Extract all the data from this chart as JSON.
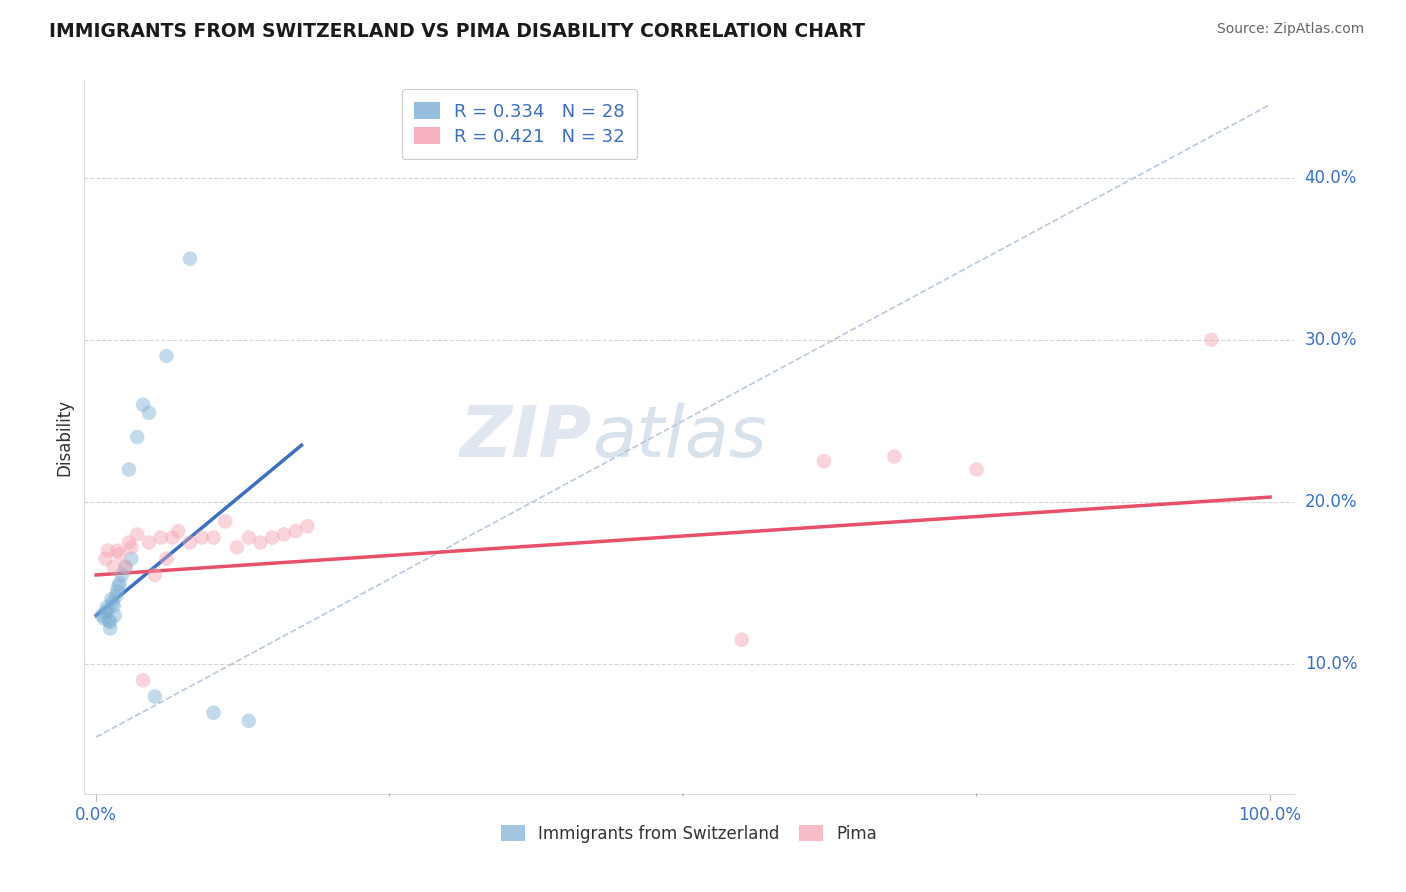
{
  "title": "IMMIGRANTS FROM SWITZERLAND VS PIMA DISABILITY CORRELATION CHART",
  "source": "Source: ZipAtlas.com",
  "ylabel": "Disability",
  "ytick_labels": [
    "10.0%",
    "20.0%",
    "30.0%",
    "40.0%"
  ],
  "ytick_values": [
    0.1,
    0.2,
    0.3,
    0.4
  ],
  "xtick_labels": [
    "0.0%",
    "100.0%"
  ],
  "xtick_values": [
    0.0,
    1.0
  ],
  "xlim": [
    -0.01,
    1.02
  ],
  "ylim": [
    0.02,
    0.46
  ],
  "legend_entries": [
    {
      "label": "R = 0.334   N = 28",
      "color": "#7bafd4"
    },
    {
      "label": "R = 0.421   N = 32",
      "color": "#f4a0b0"
    }
  ],
  "switzerland_scatter_x": [
    0.005,
    0.007,
    0.008,
    0.009,
    0.01,
    0.011,
    0.012,
    0.012,
    0.013,
    0.014,
    0.015,
    0.016,
    0.017,
    0.018,
    0.019,
    0.02,
    0.022,
    0.025,
    0.028,
    0.03,
    0.035,
    0.04,
    0.045,
    0.05,
    0.06,
    0.08,
    0.1,
    0.13
  ],
  "switzerland_scatter_y": [
    0.13,
    0.128,
    0.132,
    0.135,
    0.133,
    0.127,
    0.126,
    0.122,
    0.14,
    0.138,
    0.136,
    0.13,
    0.142,
    0.145,
    0.148,
    0.15,
    0.155,
    0.16,
    0.22,
    0.165,
    0.24,
    0.26,
    0.255,
    0.08,
    0.29,
    0.35,
    0.07,
    0.065
  ],
  "pima_scatter_x": [
    0.008,
    0.01,
    0.015,
    0.018,
    0.02,
    0.025,
    0.028,
    0.03,
    0.035,
    0.04,
    0.045,
    0.05,
    0.055,
    0.06,
    0.065,
    0.07,
    0.08,
    0.09,
    0.1,
    0.11,
    0.12,
    0.13,
    0.14,
    0.15,
    0.16,
    0.17,
    0.18,
    0.55,
    0.62,
    0.68,
    0.75,
    0.95
  ],
  "pima_scatter_y": [
    0.165,
    0.17,
    0.16,
    0.17,
    0.168,
    0.16,
    0.175,
    0.172,
    0.18,
    0.09,
    0.175,
    0.155,
    0.178,
    0.165,
    0.178,
    0.182,
    0.175,
    0.178,
    0.178,
    0.188,
    0.172,
    0.178,
    0.175,
    0.178,
    0.18,
    0.182,
    0.185,
    0.115,
    0.225,
    0.228,
    0.22,
    0.3
  ],
  "swiss_line_x": [
    0.0,
    0.175
  ],
  "swiss_line_y": [
    0.13,
    0.235
  ],
  "pima_line_x": [
    0.0,
    1.0
  ],
  "pima_line_y": [
    0.155,
    0.203
  ],
  "diagonal_line_x": [
    0.0,
    1.0
  ],
  "diagonal_line_y": [
    0.055,
    0.445
  ],
  "scatter_size": 110,
  "scatter_alpha": 0.45,
  "swiss_color": "#7bafd4",
  "pima_color": "#f4a0b0",
  "swiss_line_color": "#3a6fc4",
  "pima_line_color": "#e8506a",
  "diagonal_color": "#b8c8e0",
  "background_color": "#ffffff",
  "title_color": "#1a1a1a",
  "source_color": "#666666",
  "axis_label_color": "#3a6fc4",
  "grid_color": "#cccccc",
  "watermark_zip_color": "#c8d8e8",
  "watermark_atlas_color": "#b0c4d8"
}
